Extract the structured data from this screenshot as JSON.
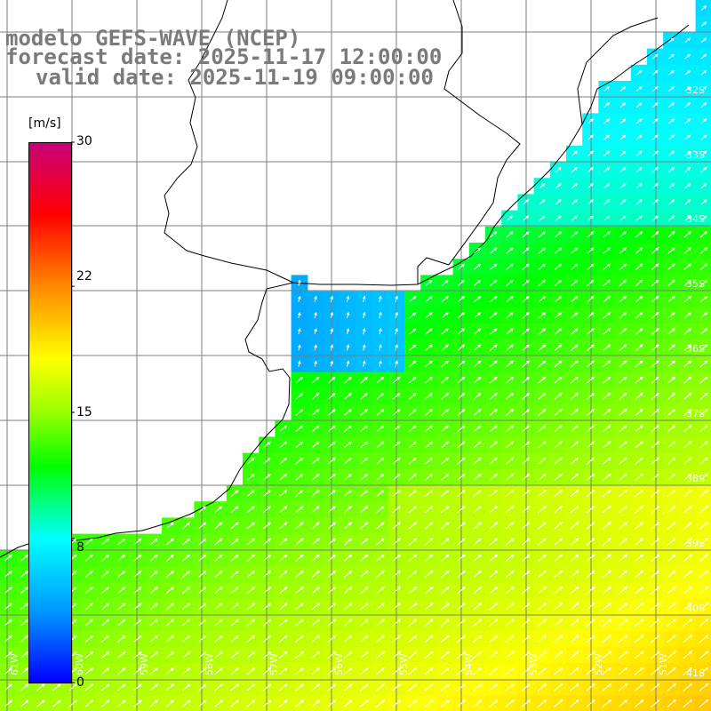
{
  "header": {
    "model": "modelo GEFS-WAVE (NCEP)",
    "forecast_date": "forecast date: 2025-11-17 12:00:00",
    "valid_date": "valid date: 2025-11-19 09:00:00"
  },
  "colorbar": {
    "unit": "[m/s]",
    "min": 0,
    "max": 30,
    "ticks": [
      "30",
      "22",
      "15",
      "8",
      "0"
    ],
    "tick_values": [
      30,
      22,
      15,
      8,
      0
    ],
    "stops": [
      {
        "value": 0,
        "color": "#0000ff"
      },
      {
        "value": 4,
        "color": "#0099ff"
      },
      {
        "value": 8,
        "color": "#00ffff"
      },
      {
        "value": 12,
        "color": "#00ff00"
      },
      {
        "value": 15,
        "color": "#99ff00"
      },
      {
        "value": 18,
        "color": "#ffff00"
      },
      {
        "value": 22,
        "color": "#ff8800"
      },
      {
        "value": 26,
        "color": "#ff0000"
      },
      {
        "value": 30,
        "color": "#c8007a"
      }
    ]
  },
  "map": {
    "lat_labels": [
      "32S",
      "33S",
      "34S",
      "35S",
      "36S",
      "37S",
      "38S",
      "39S",
      "40S",
      "41S"
    ],
    "lon_labels": [
      "61W",
      "60W",
      "59W",
      "58W",
      "57W",
      "56W",
      "55W",
      "54W",
      "53W",
      "52W",
      "51W"
    ],
    "colors": {
      "land": "#ffffff",
      "coast": "#000000",
      "grid": "#7d7d7d",
      "arrow": "#ffffff",
      "label": "#ffffff"
    },
    "arrow_direction": "toward northeast"
  }
}
